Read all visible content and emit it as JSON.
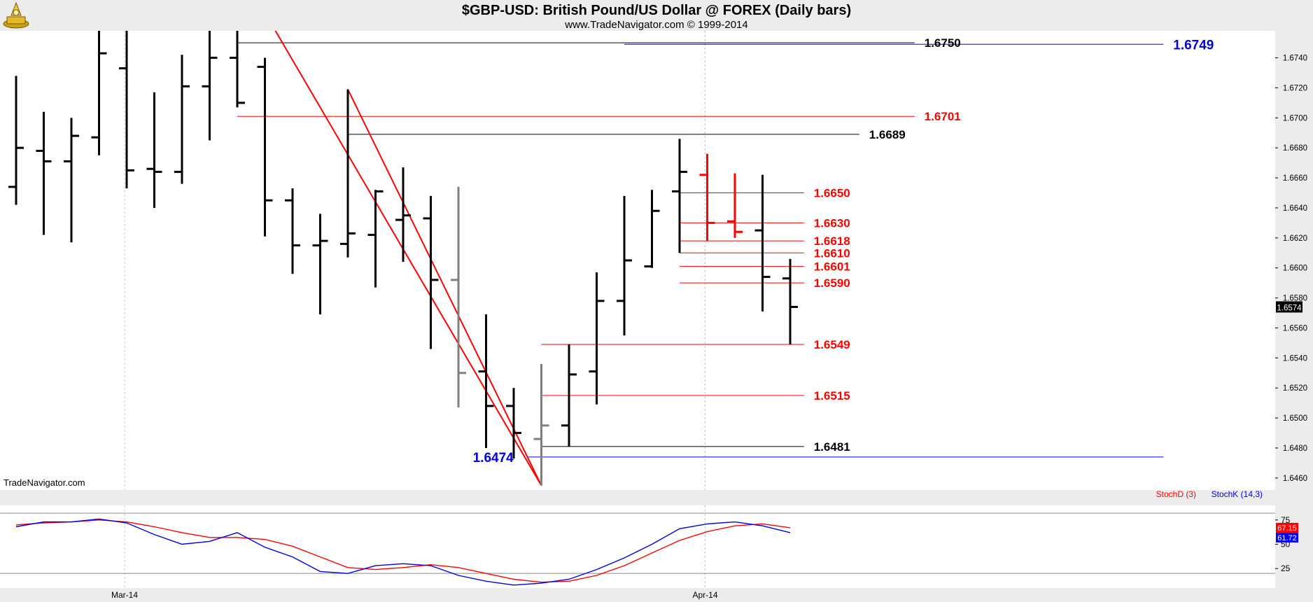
{
  "title": "$GBP-USD:  British Pound/US Dollar @ FOREX  (Daily bars)",
  "subtitle": "www.TradeNavigator.com © 1999-2014",
  "watermark": "TradeNavigator.com",
  "last_price_tag": "1.6574",
  "colors": {
    "bar": "#000000",
    "bar_gray": "#7f7f7f",
    "bar_red": "#ff0000",
    "trend": "#ff0000",
    "level_red": "#ff0000",
    "level_black": "#000000",
    "level_blue": "#0000e0",
    "stoch_d": "#ff0000",
    "stoch_k": "#0000ff",
    "panel_bg": "#ffffff",
    "page_bg": "#ececec"
  },
  "chart_data": [
    {
      "type": "ohlc",
      "ylim": [
        1.6452,
        1.6758
      ],
      "yticks": [
        "1.6460",
        "1.6480",
        "1.6500",
        "1.6520",
        "1.6540",
        "1.6560",
        "1.6580",
        "1.6600",
        "1.6620",
        "1.6640",
        "1.6660",
        "1.6680",
        "1.6700",
        "1.6720",
        "1.6740"
      ],
      "xticks": [
        {
          "bar": 4,
          "label": "Mar-14"
        },
        {
          "bar": 25,
          "label": "Apr-14"
        }
      ],
      "bars": [
        {
          "o": 1.6654,
          "h": 1.6728,
          "l": 1.6642,
          "c": 1.668,
          "color": "black"
        },
        {
          "o": 1.6678,
          "h": 1.6704,
          "l": 1.6622,
          "c": 1.6671,
          "color": "black"
        },
        {
          "o": 1.6671,
          "h": 1.67,
          "l": 1.6617,
          "c": 1.6688,
          "color": "black"
        },
        {
          "o": 1.6687,
          "h": 1.677,
          "l": 1.6675,
          "c": 1.6743,
          "color": "black"
        },
        {
          "o": 1.6733,
          "h": 1.677,
          "l": 1.6653,
          "c": 1.6665,
          "color": "black"
        },
        {
          "o": 1.6666,
          "h": 1.6717,
          "l": 1.664,
          "c": 1.6664,
          "color": "black"
        },
        {
          "o": 1.6664,
          "h": 1.6742,
          "l": 1.6656,
          "c": 1.6721,
          "color": "black"
        },
        {
          "o": 1.6721,
          "h": 1.677,
          "l": 1.6685,
          "c": 1.674,
          "color": "black"
        },
        {
          "o": 1.674,
          "h": 1.677,
          "l": 1.6707,
          "c": 1.671,
          "color": "black"
        },
        {
          "o": 1.6734,
          "h": 1.674,
          "l": 1.6621,
          "c": 1.6645,
          "color": "black"
        },
        {
          "o": 1.6645,
          "h": 1.6653,
          "l": 1.6596,
          "c": 1.6615,
          "color": "black"
        },
        {
          "o": 1.6615,
          "h": 1.6636,
          "l": 1.6569,
          "c": 1.6618,
          "color": "black"
        },
        {
          "o": 1.6616,
          "h": 1.6719,
          "l": 1.6607,
          "c": 1.6623,
          "color": "black"
        },
        {
          "o": 1.6622,
          "h": 1.6652,
          "l": 1.6587,
          "c": 1.6651,
          "color": "black"
        },
        {
          "o": 1.6632,
          "h": 1.6667,
          "l": 1.6604,
          "c": 1.6635,
          "color": "black"
        },
        {
          "o": 1.6633,
          "h": 1.6648,
          "l": 1.6546,
          "c": 1.6592,
          "color": "black"
        },
        {
          "o": 1.6592,
          "h": 1.6654,
          "l": 1.6507,
          "c": 1.653,
          "color": "gray"
        },
        {
          "o": 1.6531,
          "h": 1.6569,
          "l": 1.648,
          "c": 1.6508,
          "color": "black"
        },
        {
          "o": 1.6508,
          "h": 1.652,
          "l": 1.6473,
          "c": 1.649,
          "color": "black"
        },
        {
          "o": 1.6486,
          "h": 1.6536,
          "l": 1.6455,
          "c": 1.6495,
          "color": "gray"
        },
        {
          "o": 1.6495,
          "h": 1.6549,
          "l": 1.6481,
          "c": 1.6529,
          "color": "black"
        },
        {
          "o": 1.6531,
          "h": 1.6597,
          "l": 1.6509,
          "c": 1.6578,
          "color": "black"
        },
        {
          "o": 1.6578,
          "h": 1.6648,
          "l": 1.6555,
          "c": 1.6605,
          "color": "black"
        },
        {
          "o": 1.6601,
          "h": 1.6652,
          "l": 1.66,
          "c": 1.6638,
          "color": "black"
        },
        {
          "o": 1.6651,
          "h": 1.6686,
          "l": 1.661,
          "c": 1.6664,
          "color": "black"
        },
        {
          "o": 1.6662,
          "h": 1.6676,
          "l": 1.6618,
          "c": 1.663,
          "color": "red"
        },
        {
          "o": 1.6631,
          "h": 1.6663,
          "l": 1.662,
          "c": 1.6624,
          "color": "red"
        },
        {
          "o": 1.6625,
          "h": 1.6662,
          "l": 1.6571,
          "c": 1.6594,
          "color": "black"
        },
        {
          "o": 1.6593,
          "h": 1.6606,
          "l": 1.6549,
          "c": 1.6574,
          "color": "black"
        }
      ],
      "levels": [
        {
          "value": 1.675,
          "label": "1.6750",
          "color": "black",
          "from_bar": 8,
          "to_bar": 32.5
        },
        {
          "value": 1.6749,
          "label": "1.6749",
          "color": "blue",
          "from_bar": 22,
          "to_bar": 41.5
        },
        {
          "value": 1.6701,
          "label": "1.6701",
          "color": "red",
          "from_bar": 8,
          "to_bar": 32.5
        },
        {
          "value": 1.6689,
          "label": "1.6689",
          "color": "black",
          "from_bar": 12,
          "to_bar": 30.5
        },
        {
          "value": 1.665,
          "label": "1.6650",
          "color": "red",
          "from_bar": 24,
          "to_bar": 28.5
        },
        {
          "value": 1.663,
          "label": "1.6630",
          "color": "red",
          "from_bar": 24,
          "to_bar": 28.5
        },
        {
          "value": 1.6618,
          "label": "1.6618",
          "color": "red",
          "from_bar": 24,
          "to_bar": 28.5
        },
        {
          "value": 1.661,
          "label": "1.6610",
          "color": "red",
          "from_bar": 24,
          "to_bar": 28.5
        },
        {
          "value": 1.6601,
          "label": "1.6601",
          "color": "red",
          "from_bar": 24,
          "to_bar": 28.5
        },
        {
          "value": 1.659,
          "label": "1.6590",
          "color": "red",
          "from_bar": 24,
          "to_bar": 28.5
        },
        {
          "value": 1.6549,
          "label": "1.6549",
          "color": "red",
          "from_bar": 19,
          "to_bar": 28.5
        },
        {
          "value": 1.6515,
          "label": "1.6515",
          "color": "red",
          "from_bar": 19,
          "to_bar": 28.5
        },
        {
          "value": 1.6481,
          "label": "1.6481",
          "color": "black",
          "from_bar": 19,
          "to_bar": 28.5
        },
        {
          "value": 1.6474,
          "label": "1.6474",
          "color": "blue",
          "from_bar": 18.5,
          "to_bar": 41.5
        }
      ],
      "trendlines": [
        {
          "from": {
            "bar": 9,
            "value": 1.677
          },
          "to": {
            "bar": 19,
            "value": 1.6455
          }
        },
        {
          "from": {
            "bar": 12,
            "value": 1.6719
          },
          "to": {
            "bar": 19,
            "value": 1.6455
          }
        }
      ]
    },
    {
      "type": "line",
      "ylim": [
        5,
        90
      ],
      "yticks": [
        "25",
        "50",
        "75"
      ],
      "gridlines": [
        20,
        82
      ],
      "legend": [
        {
          "name": "StochD (3)",
          "color": "red"
        },
        {
          "name": "StochK (14,3)",
          "color": "blue"
        }
      ],
      "values_tag": [
        "67.15",
        "61.72"
      ],
      "series": [
        {
          "name": "StochD (3)",
          "color": "red",
          "values": [
            70,
            72,
            73,
            75,
            73,
            68,
            62,
            57,
            57,
            55,
            48,
            37,
            26,
            24,
            26,
            29,
            26,
            20,
            14,
            11,
            12,
            18,
            28,
            41,
            54,
            63,
            69,
            71,
            67
          ]
        },
        {
          "name": "StochK (14,3)",
          "color": "blue",
          "values": [
            68,
            73,
            73,
            76,
            72,
            60,
            50,
            53,
            62,
            47,
            37,
            22,
            20,
            28,
            30,
            28,
            18,
            12,
            8,
            10,
            14,
            24,
            36,
            50,
            66,
            71,
            73,
            69,
            62
          ]
        }
      ]
    }
  ]
}
